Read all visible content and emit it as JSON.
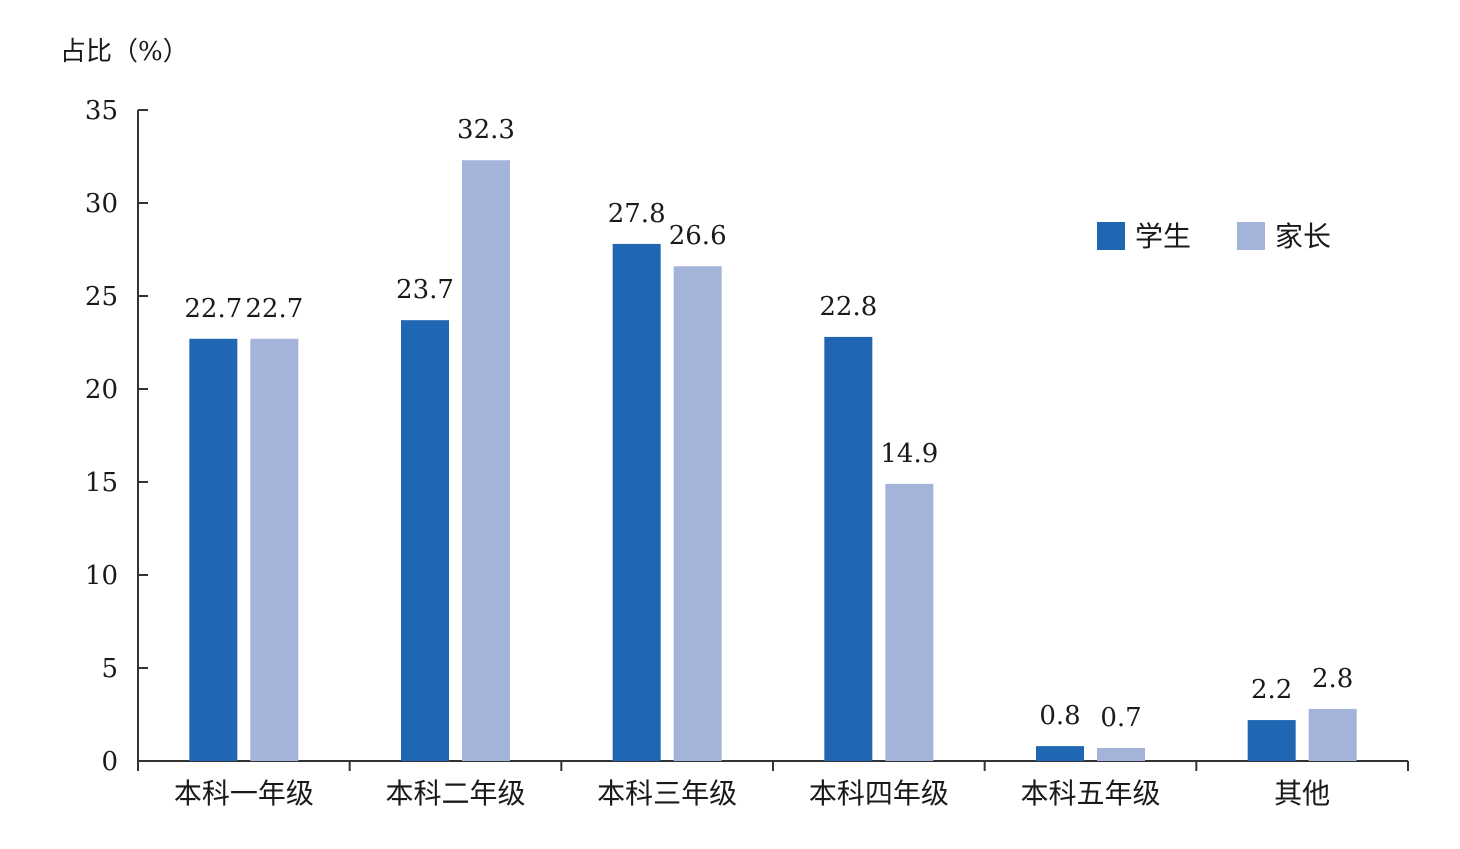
{
  "chart_data": {
    "type": "bar",
    "ylabel": "占比（%）",
    "xlabel": "",
    "ylim": [
      0,
      35
    ],
    "yticks": [
      0,
      5,
      10,
      15,
      20,
      25,
      30,
      35
    ],
    "grid": false,
    "legend_position": "top-right",
    "categories": [
      "本科一年级",
      "本科二年级",
      "本科三年级",
      "本科四年级",
      "本科五年级",
      "其他"
    ],
    "series": [
      {
        "name": "学生",
        "color": "#1f66b3",
        "values": [
          22.7,
          23.7,
          27.8,
          22.8,
          0.8,
          2.2
        ],
        "labels": [
          "22.7",
          "23.7",
          "27.8",
          "22.8",
          "0.8",
          "2.2"
        ]
      },
      {
        "name": "家长",
        "color": "#a3b3da",
        "values": [
          22.7,
          32.3,
          26.6,
          14.9,
          0.7,
          2.8
        ],
        "labels": [
          "22.7",
          "32.3",
          "26.6",
          "14.9",
          "0.7",
          "2.8"
        ]
      }
    ]
  }
}
